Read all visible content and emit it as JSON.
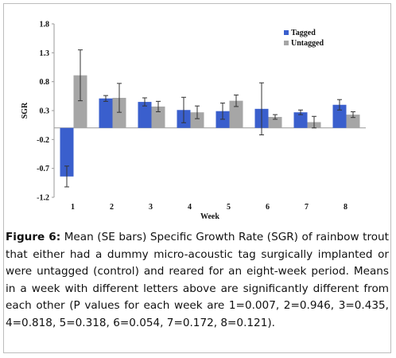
{
  "chart_data": {
    "type": "bar",
    "xlabel": "Week",
    "ylabel": "SGR",
    "ylim": [
      -1.2,
      1.8
    ],
    "yticks": [
      "1.8",
      "1.3",
      "0.8",
      "0.3",
      "-0.2",
      "-0.7",
      "-1.2"
    ],
    "categories": [
      "1",
      "2",
      "3",
      "4",
      "5",
      "6",
      "7",
      "8"
    ],
    "legend_position": "top-right",
    "grid": false,
    "series": [
      {
        "name": "Tagged",
        "color": "#3a5fcd",
        "values": [
          -0.84,
          0.51,
          0.45,
          0.31,
          0.29,
          0.33,
          0.27,
          0.4
        ],
        "errors": [
          0.18,
          0.05,
          0.07,
          0.22,
          0.14,
          0.45,
          0.04,
          0.09
        ]
      },
      {
        "name": "Untagged",
        "color": "#a6a6a6",
        "values": [
          0.91,
          0.52,
          0.37,
          0.27,
          0.47,
          0.19,
          0.1,
          0.23
        ],
        "errors": [
          0.44,
          0.25,
          0.09,
          0.11,
          0.1,
          0.04,
          0.1,
          0.05
        ]
      }
    ]
  },
  "caption": {
    "lead": "Figure 6:",
    "text": " Mean (SE bars) Specific Growth Rate (SGR) of rainbow trout that either had a dummy micro-acoustic tag surgically implanted or were untagged (control) and reared for an eight-week period. Means in a week with different letters above are significantly different from each other (P values for each week are 1=0.007, 2=0.946, 3=0.435, 4=0.818, 5=0.318, 6=0.054, 7=0.172, 8=0.121)."
  }
}
